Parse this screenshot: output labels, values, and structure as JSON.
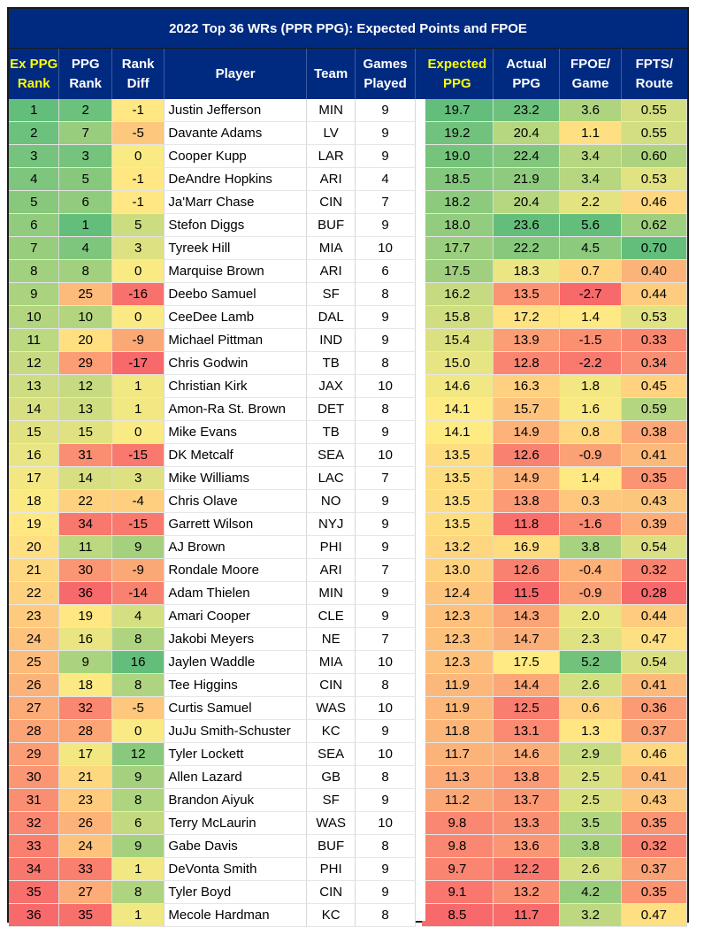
{
  "chart_data": {
    "type": "table",
    "title": "2022 Top 36 WRs (PPR PPG): Expected Points and FPOE",
    "columns": [
      "Ex PPG Rank",
      "PPG Rank",
      "Rank Diff",
      "Player",
      "Team",
      "Games Played",
      "Expected PPG",
      "Actual PPG",
      "FPOE/ Game",
      "FPTS/ Route"
    ],
    "highlighted_columns": [
      "Ex PPG Rank",
      "Expected PPG"
    ],
    "rows": [
      [
        "1",
        "2",
        "-1",
        "Justin Jefferson",
        "MIN",
        "9",
        "19.7",
        "23.2",
        "3.6",
        "0.55"
      ],
      [
        "2",
        "7",
        "-5",
        "Davante Adams",
        "LV",
        "9",
        "19.2",
        "20.4",
        "1.1",
        "0.55"
      ],
      [
        "3",
        "3",
        "0",
        "Cooper Kupp",
        "LAR",
        "9",
        "19.0",
        "22.4",
        "3.4",
        "0.60"
      ],
      [
        "4",
        "5",
        "-1",
        "DeAndre Hopkins",
        "ARI",
        "4",
        "18.5",
        "21.9",
        "3.4",
        "0.53"
      ],
      [
        "5",
        "6",
        "-1",
        "Ja'Marr Chase",
        "CIN",
        "7",
        "18.2",
        "20.4",
        "2.2",
        "0.46"
      ],
      [
        "6",
        "1",
        "5",
        "Stefon Diggs",
        "BUF",
        "9",
        "18.0",
        "23.6",
        "5.6",
        "0.62"
      ],
      [
        "7",
        "4",
        "3",
        "Tyreek Hill",
        "MIA",
        "10",
        "17.7",
        "22.2",
        "4.5",
        "0.70"
      ],
      [
        "8",
        "8",
        "0",
        "Marquise Brown",
        "ARI",
        "6",
        "17.5",
        "18.3",
        "0.7",
        "0.40"
      ],
      [
        "9",
        "25",
        "-16",
        "Deebo Samuel",
        "SF",
        "8",
        "16.2",
        "13.5",
        "-2.7",
        "0.44"
      ],
      [
        "10",
        "10",
        "0",
        "CeeDee Lamb",
        "DAL",
        "9",
        "15.8",
        "17.2",
        "1.4",
        "0.53"
      ],
      [
        "11",
        "20",
        "-9",
        "Michael Pittman",
        "IND",
        "9",
        "15.4",
        "13.9",
        "-1.5",
        "0.33"
      ],
      [
        "12",
        "29",
        "-17",
        "Chris Godwin",
        "TB",
        "8",
        "15.0",
        "12.8",
        "-2.2",
        "0.34"
      ],
      [
        "13",
        "12",
        "1",
        "Christian Kirk",
        "JAX",
        "10",
        "14.6",
        "16.3",
        "1.8",
        "0.45"
      ],
      [
        "14",
        "13",
        "1",
        "Amon-Ra St. Brown",
        "DET",
        "8",
        "14.1",
        "15.7",
        "1.6",
        "0.59"
      ],
      [
        "15",
        "15",
        "0",
        "Mike Evans",
        "TB",
        "9",
        "14.1",
        "14.9",
        "0.8",
        "0.38"
      ],
      [
        "16",
        "31",
        "-15",
        "DK Metcalf",
        "SEA",
        "10",
        "13.5",
        "12.6",
        "-0.9",
        "0.41"
      ],
      [
        "17",
        "14",
        "3",
        "Mike Williams",
        "LAC",
        "7",
        "13.5",
        "14.9",
        "1.4",
        "0.35"
      ],
      [
        "18",
        "22",
        "-4",
        "Chris Olave",
        "NO",
        "9",
        "13.5",
        "13.8",
        "0.3",
        "0.43"
      ],
      [
        "19",
        "34",
        "-15",
        "Garrett Wilson",
        "NYJ",
        "9",
        "13.5",
        "11.8",
        "-1.6",
        "0.39"
      ],
      [
        "20",
        "11",
        "9",
        "AJ Brown",
        "PHI",
        "9",
        "13.2",
        "16.9",
        "3.8",
        "0.54"
      ],
      [
        "21",
        "30",
        "-9",
        "Rondale Moore",
        "ARI",
        "7",
        "13.0",
        "12.6",
        "-0.4",
        "0.32"
      ],
      [
        "22",
        "36",
        "-14",
        "Adam Thielen",
        "MIN",
        "9",
        "12.4",
        "11.5",
        "-0.9",
        "0.28"
      ],
      [
        "23",
        "19",
        "4",
        "Amari Cooper",
        "CLE",
        "9",
        "12.3",
        "14.3",
        "2.0",
        "0.44"
      ],
      [
        "24",
        "16",
        "8",
        "Jakobi Meyers",
        "NE",
        "7",
        "12.3",
        "14.7",
        "2.3",
        "0.47"
      ],
      [
        "25",
        "9",
        "16",
        "Jaylen Waddle",
        "MIA",
        "10",
        "12.3",
        "17.5",
        "5.2",
        "0.54"
      ],
      [
        "26",
        "18",
        "8",
        "Tee Higgins",
        "CIN",
        "8",
        "11.9",
        "14.4",
        "2.6",
        "0.41"
      ],
      [
        "27",
        "32",
        "-5",
        "Curtis Samuel",
        "WAS",
        "10",
        "11.9",
        "12.5",
        "0.6",
        "0.36"
      ],
      [
        "28",
        "28",
        "0",
        "JuJu Smith-Schuster",
        "KC",
        "9",
        "11.8",
        "13.1",
        "1.3",
        "0.37"
      ],
      [
        "29",
        "17",
        "12",
        "Tyler Lockett",
        "SEA",
        "10",
        "11.7",
        "14.6",
        "2.9",
        "0.46"
      ],
      [
        "30",
        "21",
        "9",
        "Allen Lazard",
        "GB",
        "8",
        "11.3",
        "13.8",
        "2.5",
        "0.41"
      ],
      [
        "31",
        "23",
        "8",
        "Brandon Aiyuk",
        "SF",
        "9",
        "11.2",
        "13.7",
        "2.5",
        "0.43"
      ],
      [
        "32",
        "26",
        "6",
        "Terry McLaurin",
        "WAS",
        "10",
        "9.8",
        "13.3",
        "3.5",
        "0.35"
      ],
      [
        "33",
        "24",
        "9",
        "Gabe Davis",
        "BUF",
        "8",
        "9.8",
        "13.6",
        "3.8",
        "0.32"
      ],
      [
        "34",
        "33",
        "1",
        "DeVonta Smith",
        "PHI",
        "9",
        "9.7",
        "12.2",
        "2.6",
        "0.37"
      ],
      [
        "35",
        "27",
        "8",
        "Tyler Boyd",
        "CIN",
        "9",
        "9.1",
        "13.2",
        "4.2",
        "0.35"
      ],
      [
        "36",
        "35",
        "1",
        "Mecole Hardman",
        "KC",
        "8",
        "8.5",
        "11.7",
        "3.2",
        "0.47"
      ]
    ],
    "color_scale": {
      "low": "#f8696b",
      "mid": "#ffeb84",
      "high": "#63be7b"
    }
  },
  "colors": {
    "header_bg": "#002a80",
    "header_text": "#ffffff",
    "header_highlight_text": "#ffff00"
  }
}
